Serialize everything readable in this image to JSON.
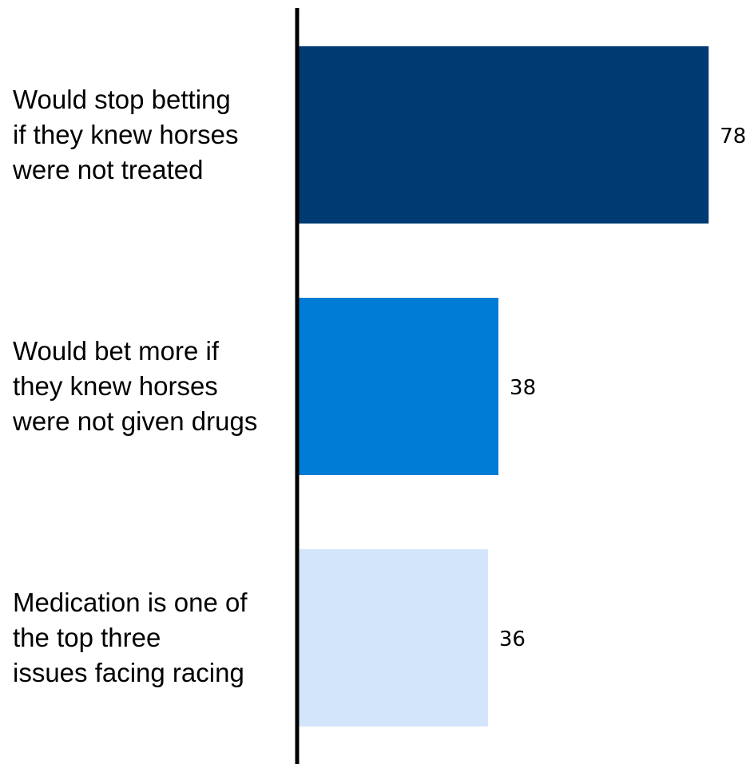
{
  "chart_data": {
    "type": "bar",
    "orientation": "horizontal",
    "title": "",
    "xlabel": "",
    "ylabel": "",
    "xlim": [
      0,
      80
    ],
    "grid": false,
    "categories": [
      "Would stop betting\nif they knew horses\nwere not treated",
      "Would bet more if\nthey knew horses\nwere not given drugs",
      "Medication is one of\nthe top three\nissues facing racing"
    ],
    "values": [
      78,
      38,
      36
    ],
    "value_labels": [
      "78",
      "38",
      "36"
    ],
    "colors": [
      "#003a73",
      "#007cd6",
      "#d3e5fa"
    ],
    "axis_color": "#000000"
  }
}
